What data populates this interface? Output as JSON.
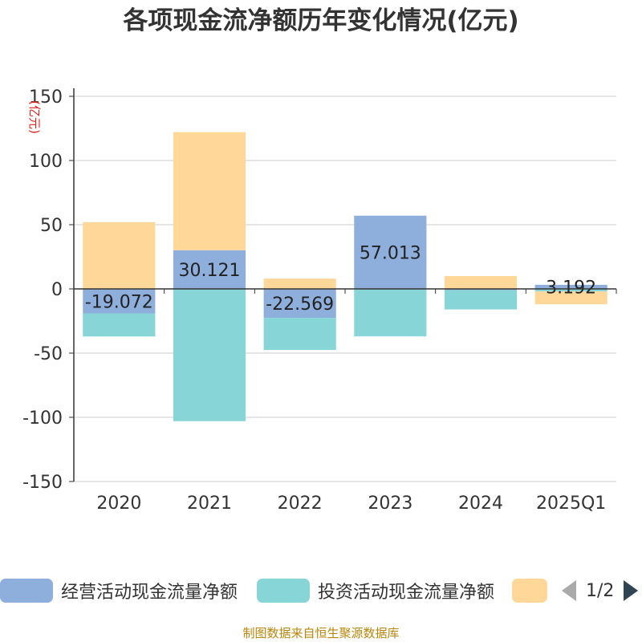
{
  "title": "各项现金流净额历年变化情况(亿元)",
  "footer": "制图数据来自恒生聚源数据库",
  "legend": {
    "operating": "经营活动现金流量净额",
    "investing": "投资活动现金流量净额",
    "page": "1/2"
  },
  "chart_data": {
    "type": "bar",
    "stacked": true,
    "title": "各项现金流净额历年变化情况(亿元)",
    "ylabel": "(亿元)",
    "ylim": [
      -150,
      150
    ],
    "yticks": [
      150,
      100,
      50,
      0,
      -50,
      -100,
      -150
    ],
    "categories": [
      "2020",
      "2021",
      "2022",
      "2023",
      "2024",
      "2025Q1"
    ],
    "legend_position": "bottom",
    "grid": true,
    "series": [
      {
        "name": "经营活动现金流量净额",
        "color": "#8eaedb",
        "values": [
          -19.072,
          30.121,
          -22.569,
          57.013,
          -1.0,
          3.192
        ],
        "labels": [
          "-19.072",
          "30.121",
          "-22.569",
          "57.013",
          "",
          "3.192"
        ]
      },
      {
        "name": "投资活动现金流量净额",
        "color": "#88d5d8",
        "values": [
          -18,
          -103,
          -25,
          -37,
          -15,
          -2
        ],
        "labels": []
      },
      {
        "name": "",
        "color": "#ffd899",
        "values": [
          52,
          92,
          8,
          0,
          10,
          -10
        ],
        "labels": []
      }
    ]
  }
}
